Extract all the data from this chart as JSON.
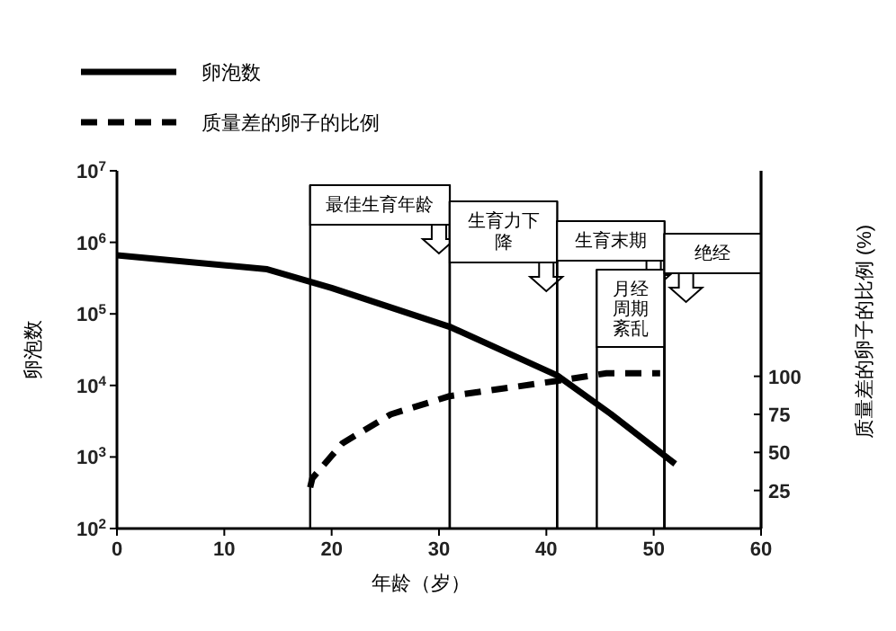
{
  "chart_data": {
    "type": "line",
    "xlabel": "年龄（岁）",
    "ylabel": "卵泡数",
    "y2label": "质量差的卵子的比例 (%)",
    "log": "y",
    "legend": "top left",
    "grid": false,
    "xlim": [
      0,
      60
    ],
    "xticks": [
      0,
      10,
      20,
      30,
      40,
      50,
      60
    ],
    "ylim": [
      100,
      10000000
    ],
    "yticks": [
      {
        "value": 100,
        "label": "10$^{2}$"
      },
      {
        "value": 1000,
        "label": "10$^{3}$"
      },
      {
        "value": 10000,
        "label": "10$^{4}$"
      },
      {
        "value": 100000,
        "label": "10$^{5}$"
      },
      {
        "value": 1000000,
        "label": "10$^{6}$"
      },
      {
        "value": 10000000,
        "label": "10$^{7}$"
      }
    ],
    "y2lim": [
      0,
      235
    ],
    "y2ticks": [
      25,
      50,
      75,
      100
    ],
    "series": [
      {
        "name": "卵泡数",
        "color": "#000000",
        "line_style": "solid",
        "x": [
          0,
          14,
          20,
          31,
          41,
          46,
          52
        ],
        "values": [
          660000,
          420000,
          230000,
          66000,
          13800,
          4000,
          800
        ]
      },
      {
        "name": "质量差的卵子的比例",
        "color": "#000000",
        "line_style": "dashed",
        "axis": "y2",
        "x": [
          18,
          18.2,
          21,
          25.5,
          31,
          41,
          45.6,
          50.6
        ],
        "values": [
          27,
          33,
          56,
          75,
          87,
          97,
          102,
          102
        ]
      }
    ],
    "bands": [
      {
        "axis": "x",
        "from": 18,
        "to": 31,
        "label": "最佳生育年龄"
      },
      {
        "axis": "x",
        "from": 31,
        "to": 41,
        "label": "生育力下降"
      },
      {
        "axis": "x",
        "from": 41,
        "to": 51,
        "label": "生育末期"
      },
      {
        "axis": "x",
        "from": 44.7,
        "to": 51,
        "label": "月经周期紊乱"
      },
      {
        "axis": "x",
        "from": 51,
        "to": 60,
        "label": "绝经"
      }
    ]
  }
}
